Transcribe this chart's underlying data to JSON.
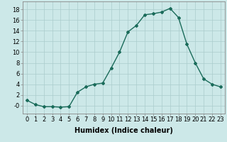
{
  "x": [
    0,
    1,
    2,
    3,
    4,
    5,
    6,
    7,
    8,
    9,
    10,
    11,
    12,
    13,
    14,
    15,
    16,
    17,
    18,
    19,
    20,
    21,
    22,
    23
  ],
  "y": [
    1,
    0.2,
    -0.2,
    -0.2,
    -0.3,
    -0.2,
    2.5,
    3.5,
    4.0,
    4.2,
    7.0,
    10.0,
    13.8,
    15.0,
    17.0,
    17.2,
    17.5,
    18.2,
    16.5,
    11.5,
    8.0,
    5.0,
    4.0,
    3.5
  ],
  "line_color": "#1a6b5a",
  "marker": "D",
  "marker_size": 2,
  "bg_color": "#cce8e8",
  "grid_color": "#aacccc",
  "xlabel": "Humidex (Indice chaleur)",
  "xlim": [
    -0.5,
    23.5
  ],
  "ylim": [
    -1.5,
    19.5
  ],
  "yticks": [
    0,
    2,
    4,
    6,
    8,
    10,
    12,
    14,
    16,
    18
  ],
  "ytick_labels": [
    "-0",
    "2",
    "4",
    "6",
    "8",
    "10",
    "12",
    "14",
    "16",
    "18"
  ],
  "xtick_labels": [
    "0",
    "1",
    "2",
    "3",
    "4",
    "5",
    "6",
    "7",
    "8",
    "9",
    "10",
    "11",
    "12",
    "13",
    "14",
    "15",
    "16",
    "17",
    "18",
    "19",
    "20",
    "21",
    "22",
    "23"
  ],
  "xlabel_fontsize": 7,
  "tick_fontsize": 6
}
